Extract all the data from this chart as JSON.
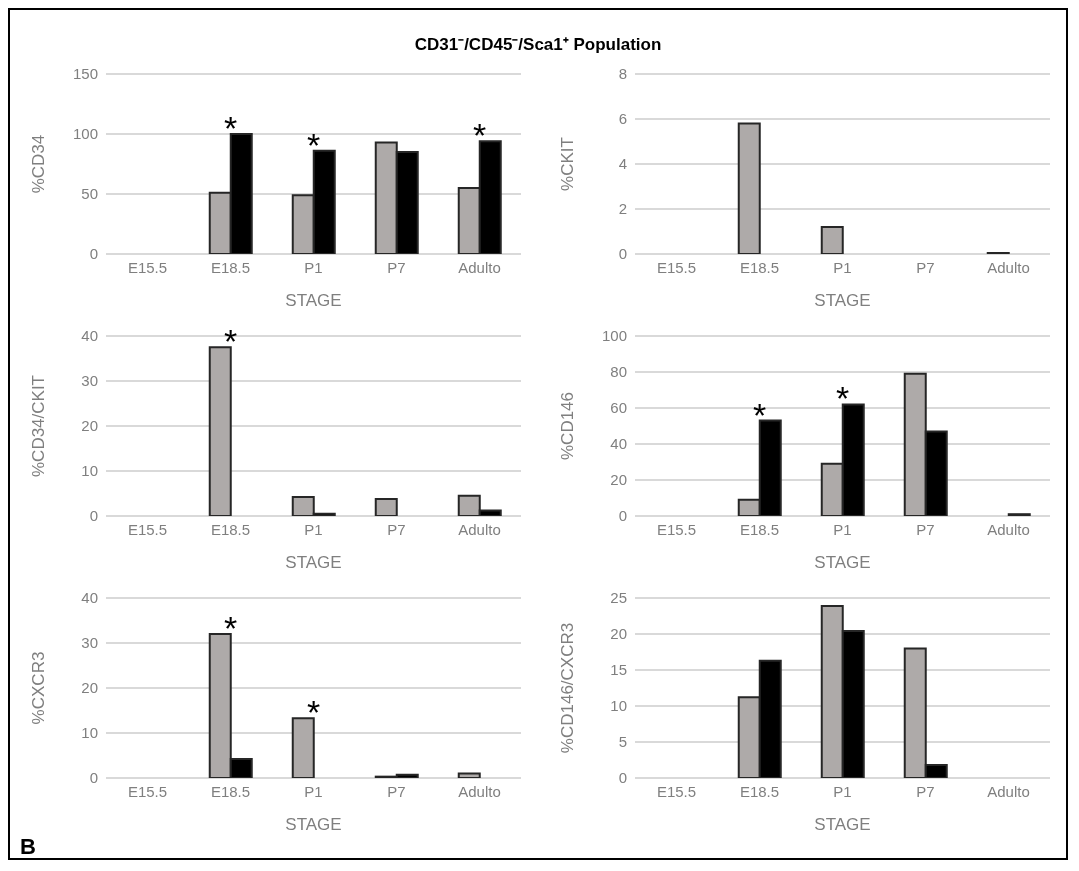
{
  "chart_data": [
    {
      "type": "bar",
      "title": "CD31⁻/CD45⁻/Sca1⁺ Population",
      "xlabel": "STAGE",
      "ylabel": "%CD34",
      "categories": [
        "E15.5",
        "E18.5",
        "P1",
        "P7",
        "Adulto"
      ],
      "series": [
        {
          "color": "#aeaaa9",
          "values": [
            0,
            51,
            49,
            93,
            55
          ]
        },
        {
          "color": "#000000",
          "values": [
            0,
            100,
            86,
            85,
            94
          ]
        }
      ],
      "ylim": [
        0,
        150
      ],
      "yticks": [
        0,
        50,
        100,
        150
      ],
      "grid": "y",
      "legend": false,
      "annotations": [
        {
          "text": "*",
          "x": "E18.5",
          "y": 100
        },
        {
          "text": "*",
          "x": "P1",
          "y": 86
        },
        {
          "text": "*",
          "x": "Adulto",
          "y": 94
        }
      ]
    },
    {
      "type": "bar",
      "xlabel": "STAGE",
      "ylabel": "%CKIT",
      "categories": [
        "E15.5",
        "E18.5",
        "P1",
        "P7",
        "Adulto"
      ],
      "series": [
        {
          "color": "#aeaaa9",
          "values": [
            0,
            5.8,
            1.2,
            0,
            0.05
          ]
        },
        {
          "color": "#000000",
          "values": [
            0,
            0,
            0,
            0,
            0
          ]
        }
      ],
      "ylim": [
        0,
        8
      ],
      "yticks": [
        0,
        2,
        4,
        6,
        8
      ],
      "grid": "y",
      "legend": false
    },
    {
      "type": "bar",
      "xlabel": "STAGE",
      "ylabel": "%CD34/CKIT",
      "categories": [
        "E15.5",
        "E18.5",
        "P1",
        "P7",
        "Adulto"
      ],
      "series": [
        {
          "color": "#aeaaa9",
          "values": [
            0,
            37.5,
            4.2,
            3.8,
            4.5
          ]
        },
        {
          "color": "#000000",
          "values": [
            0,
            0,
            0.5,
            0,
            1.2
          ]
        }
      ],
      "ylim": [
        0,
        40
      ],
      "yticks": [
        0,
        10,
        20,
        30,
        40
      ],
      "grid": "y",
      "legend": false,
      "annotations": [
        {
          "text": "*",
          "x": "E18.5",
          "y": 37.5
        }
      ]
    },
    {
      "type": "bar",
      "xlabel": "STAGE",
      "ylabel": "%CD146",
      "categories": [
        "E15.5",
        "E18.5",
        "P1",
        "P7",
        "Adulto"
      ],
      "series": [
        {
          "color": "#aeaaa9",
          "values": [
            0,
            9,
            29,
            79,
            0
          ]
        },
        {
          "color": "#000000",
          "values": [
            0,
            53,
            62,
            47,
            1
          ]
        }
      ],
      "ylim": [
        0,
        100
      ],
      "yticks": [
        0,
        20,
        40,
        60,
        80,
        100
      ],
      "grid": "y",
      "legend": false,
      "annotations": [
        {
          "text": "*",
          "x": "E18.5",
          "y": 53
        },
        {
          "text": "*",
          "x": "P1",
          "y": 62
        }
      ]
    },
    {
      "type": "bar",
      "xlabel": "STAGE",
      "ylabel": "%CXCR3",
      "categories": [
        "E15.5",
        "E18.5",
        "P1",
        "P7",
        "Adulto"
      ],
      "series": [
        {
          "color": "#aeaaa9",
          "values": [
            0,
            32,
            13.3,
            0.3,
            1
          ]
        },
        {
          "color": "#000000",
          "values": [
            0,
            4.2,
            0,
            0.7,
            0
          ]
        }
      ],
      "ylim": [
        0,
        40
      ],
      "yticks": [
        0,
        10,
        20,
        30,
        40
      ],
      "grid": "y",
      "legend": false,
      "annotations": [
        {
          "text": "*",
          "x": "E18.5",
          "y": 32
        },
        {
          "text": "*",
          "x": "P1",
          "y": 13.3
        },
        "B"
      ]
    },
    {
      "type": "bar",
      "xlabel": "STAGE",
      "ylabel": "%CD146/CXCR3",
      "categories": [
        "E15.5",
        "E18.5",
        "P1",
        "P7",
        "Adulto"
      ],
      "series": [
        {
          "color": "#aeaaa9",
          "values": [
            0,
            11.2,
            23.9,
            18,
            0
          ]
        },
        {
          "color": "#000000",
          "values": [
            0,
            16.3,
            20.4,
            1.8,
            0
          ]
        }
      ],
      "ylim": [
        0,
        25
      ],
      "yticks": [
        0,
        5,
        10,
        15,
        20,
        25
      ],
      "grid": "y",
      "legend": false
    }
  ]
}
